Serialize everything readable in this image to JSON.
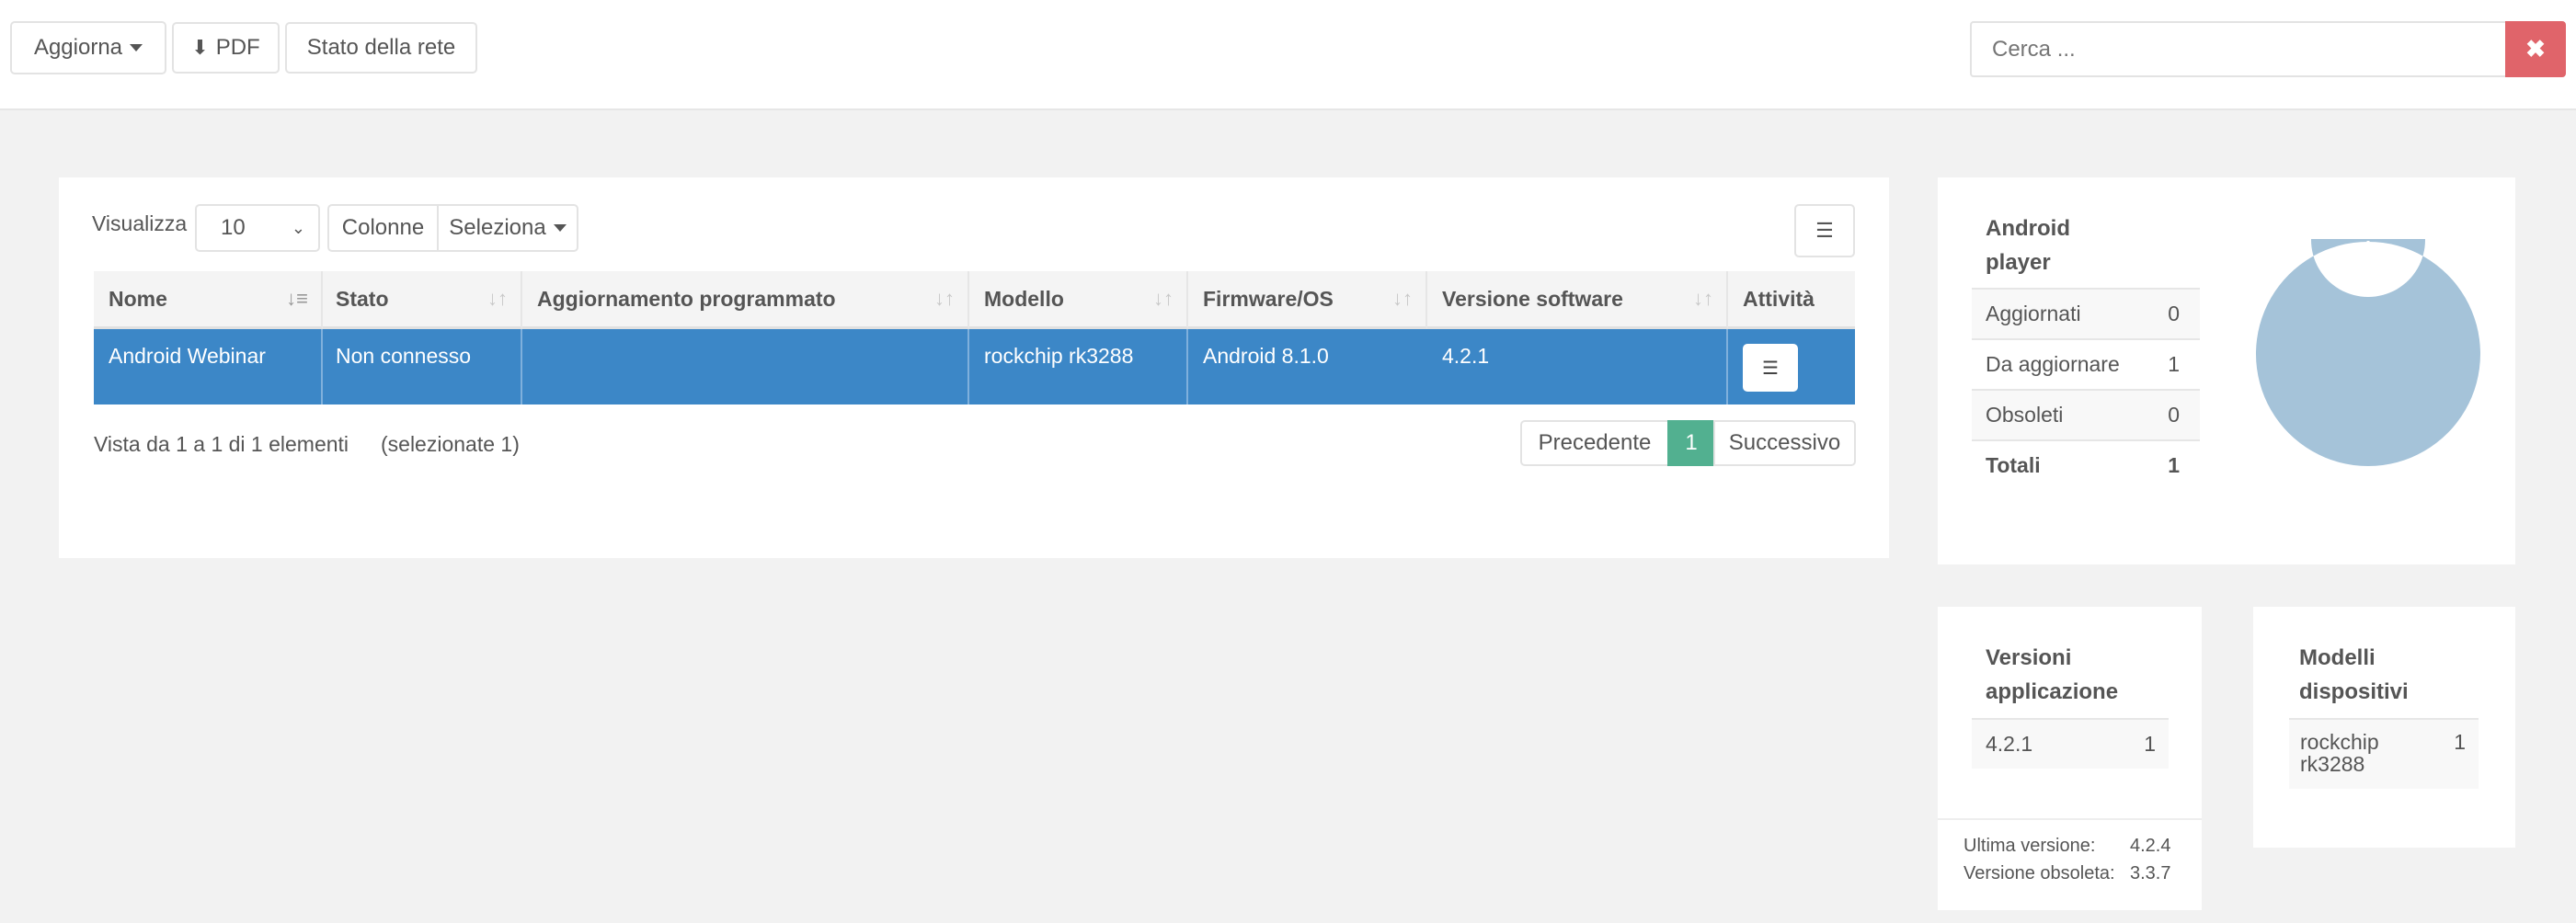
{
  "toolbar": {
    "update_label": "Aggiorna",
    "pdf_label": "PDF",
    "network_label": "Stato della rete",
    "search_placeholder": "Cerca ..."
  },
  "table_controls": {
    "show_label": "Visualizza",
    "page_size": "10",
    "columns_label": "Colonne",
    "select_label": "Seleziona"
  },
  "table": {
    "headers": [
      "Nome",
      "Stato",
      "Aggiornamento programmato",
      "Modello",
      "Firmware/OS",
      "Versione software",
      "Attività"
    ],
    "rows": [
      {
        "nome": "Android Webinar",
        "stato": "Non connesso",
        "aggiornamento": "",
        "modello": "rockchip rk3288",
        "firmware": "Android 8.1.0",
        "versione": "4.2.1"
      }
    ],
    "info": "Vista da 1 a 1 di 1 elementi",
    "selected": "(selezionate 1)",
    "pagination": {
      "prev": "Precedente",
      "current": "1",
      "next": "Successivo"
    }
  },
  "colors": {
    "selected_row": "#3c87c7",
    "active_page": "#52b090",
    "search_clear": "#e0646a",
    "donut": "#a5c3d9"
  },
  "android_player": {
    "title": "Android player",
    "rows": [
      {
        "label": "Aggiornati",
        "value": "0"
      },
      {
        "label": "Da aggiornare",
        "value": "1"
      },
      {
        "label": "Obsoleti",
        "value": "0"
      }
    ],
    "total_label": "Totali",
    "total_value": "1"
  },
  "chart_data": {
    "type": "pie",
    "values": [
      0,
      1,
      0
    ],
    "categories": [
      "Aggiornati",
      "Da aggiornare",
      "Obsoleti"
    ]
  },
  "versions": {
    "title": "Versioni applicazione",
    "rows": [
      {
        "label": "4.2.1",
        "value": "1"
      }
    ],
    "latest_label": "Ultima versione:",
    "latest_value": "4.2.4",
    "obsolete_label": "Versione obsoleta:",
    "obsolete_value": "3.3.7"
  },
  "models": {
    "title": "Modelli dispositivi",
    "rows": [
      {
        "label": "rockchip rk3288",
        "value": "1"
      }
    ]
  }
}
